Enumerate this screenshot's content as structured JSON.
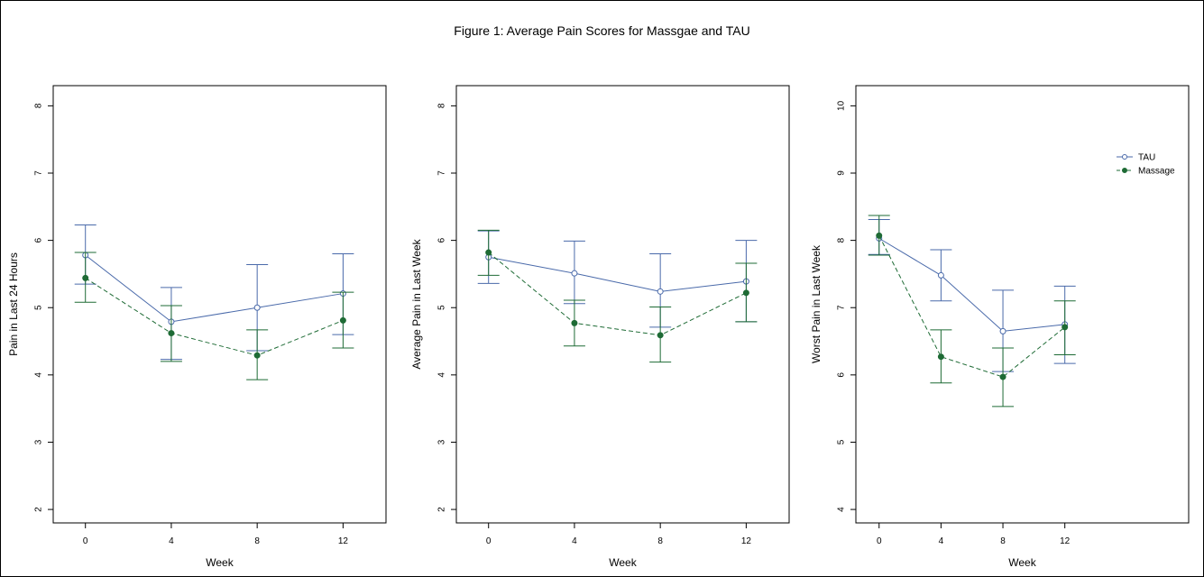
{
  "figure_title": "Figure 1: Average Pain Scores for Massgae and TAU",
  "colors": {
    "tau": "#4a6aaa",
    "massage": "#1e6b35",
    "axis": "#000000"
  },
  "chart_data": [
    {
      "type": "line",
      "xlabel": "Week",
      "ylabel": "Pain in Last 24 Hours",
      "x": [
        0,
        4,
        8,
        12
      ],
      "xlim": [
        -1.5,
        14
      ],
      "ylim": [
        1.8,
        8.3
      ],
      "yticks": [
        2,
        3,
        4,
        5,
        6,
        7,
        8
      ],
      "xticks": [
        0,
        4,
        8,
        12
      ],
      "series": [
        {
          "name": "TAU",
          "style": "solid",
          "marker": "open-circle",
          "values": [
            5.78,
            4.79,
            5.0,
            5.21
          ],
          "lower": [
            5.35,
            4.23,
            4.36,
            4.6
          ],
          "upper": [
            6.23,
            5.3,
            5.64,
            5.8
          ]
        },
        {
          "name": "Massage",
          "style": "dashed",
          "marker": "filled-circle",
          "values": [
            5.44,
            4.62,
            4.29,
            4.81
          ],
          "lower": [
            5.08,
            4.2,
            3.93,
            4.4
          ],
          "upper": [
            5.82,
            5.03,
            4.67,
            5.23
          ]
        }
      ],
      "legend": null
    },
    {
      "type": "line",
      "xlabel": "Week",
      "ylabel": "Average Pain in Last Week",
      "x": [
        0,
        4,
        8,
        12
      ],
      "xlim": [
        -1.5,
        14
      ],
      "ylim": [
        1.8,
        8.3
      ],
      "yticks": [
        2,
        3,
        4,
        5,
        6,
        7,
        8
      ],
      "xticks": [
        0,
        4,
        8,
        12
      ],
      "series": [
        {
          "name": "TAU",
          "style": "solid",
          "marker": "open-circle",
          "values": [
            5.75,
            5.51,
            5.24,
            5.39
          ],
          "lower": [
            5.36,
            5.06,
            4.71,
            4.79
          ],
          "upper": [
            6.14,
            5.99,
            5.8,
            6.0
          ]
        },
        {
          "name": "Massage",
          "style": "dashed",
          "marker": "filled-circle",
          "values": [
            5.82,
            4.77,
            4.59,
            5.22
          ],
          "lower": [
            5.48,
            4.43,
            4.19,
            4.79
          ],
          "upper": [
            6.15,
            5.11,
            5.01,
            5.66
          ]
        }
      ],
      "legend": null
    },
    {
      "type": "line",
      "xlabel": "Week",
      "ylabel": "Worst Pain in Last Week",
      "x": [
        0,
        4,
        8,
        12
      ],
      "xlim": [
        -1.5,
        20
      ],
      "ylim": [
        3.8,
        10.3
      ],
      "yticks": [
        4,
        5,
        6,
        7,
        8,
        9,
        10
      ],
      "xticks": [
        0,
        4,
        8,
        12
      ],
      "series": [
        {
          "name": "TAU",
          "style": "solid",
          "marker": "open-circle",
          "values": [
            8.03,
            7.48,
            6.65,
            6.75
          ],
          "lower": [
            7.79,
            7.1,
            6.05,
            6.17
          ],
          "upper": [
            8.31,
            7.86,
            7.26,
            7.32
          ]
        },
        {
          "name": "Massage",
          "style": "dashed",
          "marker": "filled-circle",
          "values": [
            8.07,
            6.27,
            5.97,
            6.71
          ],
          "lower": [
            7.78,
            5.88,
            5.53,
            6.3
          ],
          "upper": [
            8.37,
            6.67,
            6.4,
            7.1
          ]
        }
      ],
      "legend": {
        "position": "top-right",
        "entries": [
          "TAU",
          "Massage"
        ]
      }
    }
  ]
}
